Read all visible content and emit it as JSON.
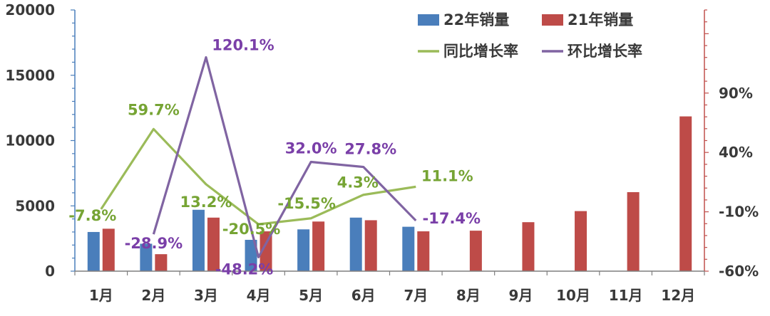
{
  "chart_data": {
    "type": "bar",
    "categories": [
      "1月",
      "2月",
      "3月",
      "4月",
      "5月",
      "6月",
      "7月",
      "8月",
      "9月",
      "10月",
      "11月",
      "12月"
    ],
    "series": [
      {
        "name": "22年销量",
        "kind": "bar",
        "axis": "left",
        "color": "#4a7ebb",
        "values": [
          3000,
          2100,
          4700,
          2400,
          3200,
          4100,
          3400,
          null,
          null,
          null,
          null,
          null
        ]
      },
      {
        "name": "21年销量",
        "kind": "bar",
        "axis": "left",
        "color": "#be4b48",
        "values": [
          3250,
          1300,
          4100,
          3050,
          3800,
          3900,
          3050,
          3100,
          3750,
          4600,
          6050,
          11850
        ]
      },
      {
        "name": "同比增长率",
        "kind": "line",
        "axis": "right",
        "color": "#9bbb59",
        "label_color": "#76a434",
        "values": [
          -7.8,
          59.7,
          13.2,
          -20.5,
          -15.5,
          4.3,
          11.1,
          null,
          null,
          null,
          null,
          null
        ],
        "labels": [
          "-7.8%",
          "59.7%",
          "13.2%",
          "-20.5%",
          "-15.5%",
          "4.3%",
          "11.1%",
          "",
          "",
          "",
          "",
          ""
        ]
      },
      {
        "name": "环比增长率",
        "kind": "line",
        "axis": "right",
        "color": "#8064a2",
        "label_color": "#7a3fa8",
        "values": [
          null,
          -28.9,
          120.1,
          -48.2,
          32.0,
          27.8,
          -17.4,
          null,
          null,
          null,
          null,
          null
        ],
        "labels": [
          "",
          "-28.9%",
          "120.1%",
          "-48.2%",
          "32.0%",
          "27.8%",
          "-17.4%",
          "",
          "",
          "",
          "",
          ""
        ]
      }
    ],
    "y_left": {
      "ylim": [
        0,
        20000
      ],
      "ticks": [
        "0",
        "5000",
        "10000",
        "15000",
        "20000"
      ],
      "tick_values": [
        0,
        5000,
        10000,
        15000,
        20000
      ],
      "max": 20000,
      "color": "#4a7ebb"
    },
    "y_right": {
      "ylim": [
        -60,
        160
      ],
      "ticks": [
        "-60%",
        "-10%",
        "40%",
        "90%"
      ],
      "tick_values": [
        -60,
        -10,
        40,
        90
      ],
      "color": "#c0504d"
    },
    "legend": {
      "position": "top-right",
      "items": [
        {
          "label": "22年销量",
          "marker": "bar",
          "color": "#4a7ebb"
        },
        {
          "label": "21年销量",
          "marker": "bar",
          "color": "#be4b48"
        },
        {
          "label": "同比增长率",
          "marker": "line",
          "color": "#9bbb59"
        },
        {
          "label": "环比增长率",
          "marker": "line",
          "color": "#8064a2"
        }
      ]
    },
    "grid": false
  }
}
